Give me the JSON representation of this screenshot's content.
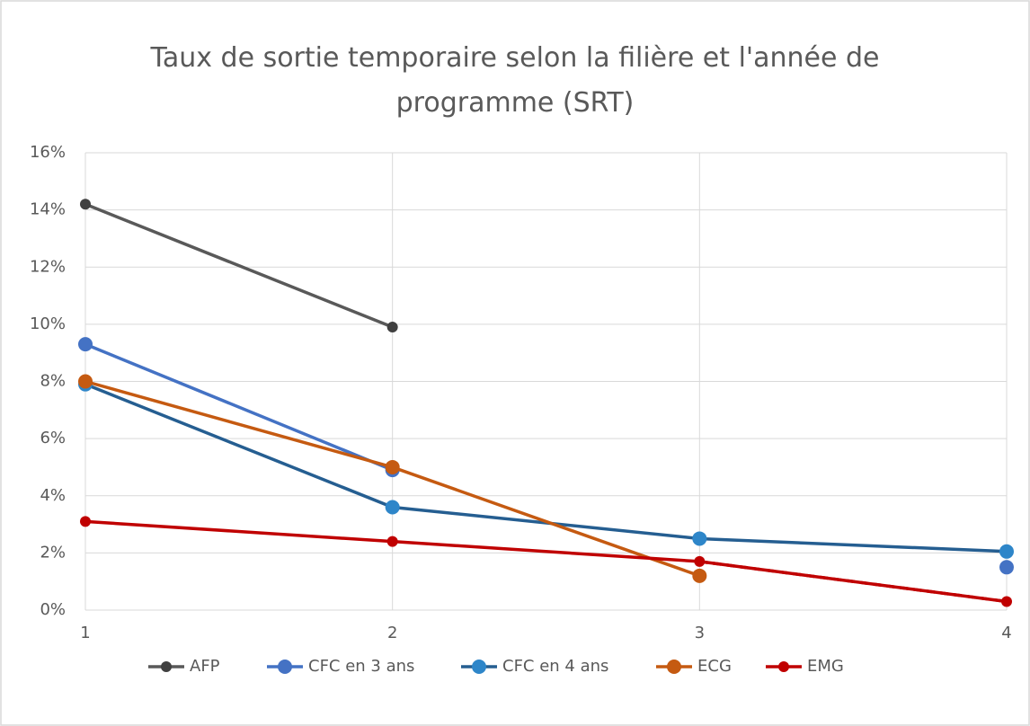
{
  "chart_data": {
    "type": "line",
    "title": "Taux de sortie temporaire selon la filière et l'année de programme (SRT)",
    "x": [
      1,
      2,
      3,
      4
    ],
    "xlim": [
      1,
      4
    ],
    "xticks": [
      1,
      2,
      3,
      4
    ],
    "ylim": [
      0,
      16
    ],
    "yticks": [
      {
        "value": 0,
        "label": "0%"
      },
      {
        "value": 2,
        "label": "2%"
      },
      {
        "value": 4,
        "label": "4%"
      },
      {
        "value": 6,
        "label": "6%"
      },
      {
        "value": 8,
        "label": "8%"
      },
      {
        "value": 10,
        "label": "10%"
      },
      {
        "value": 12,
        "label": "12%"
      },
      {
        "value": 14,
        "label": "14%"
      },
      {
        "value": 16,
        "label": "16%"
      }
    ],
    "grid": true,
    "legend": "bottom",
    "series": [
      {
        "name": "AFP",
        "color": "#595959",
        "marker_color": "#404040",
        "marker_size": 6,
        "values": [
          14.2,
          9.9,
          null,
          null
        ]
      },
      {
        "name": "CFC en 3 ans",
        "color": "#4472c4",
        "marker_color": "#4472c4",
        "marker_size": 8,
        "values": [
          9.3,
          4.9,
          null,
          1.5
        ]
      },
      {
        "name": "CFC en 4 ans",
        "color": "#255e91",
        "marker_color": "#2e86c9",
        "marker_size": 8,
        "values": [
          7.9,
          3.6,
          2.5,
          2.05
        ]
      },
      {
        "name": "ECG",
        "color": "#c55a11",
        "marker_color": "#c55a11",
        "marker_size": 8,
        "values": [
          8.0,
          5.0,
          1.2,
          null
        ]
      },
      {
        "name": "EMG",
        "color": "#c00000",
        "marker_color": "#c00000",
        "marker_size": 6,
        "values": [
          3.1,
          2.4,
          1.7,
          0.3
        ],
        "dash_from": 2
      }
    ]
  }
}
